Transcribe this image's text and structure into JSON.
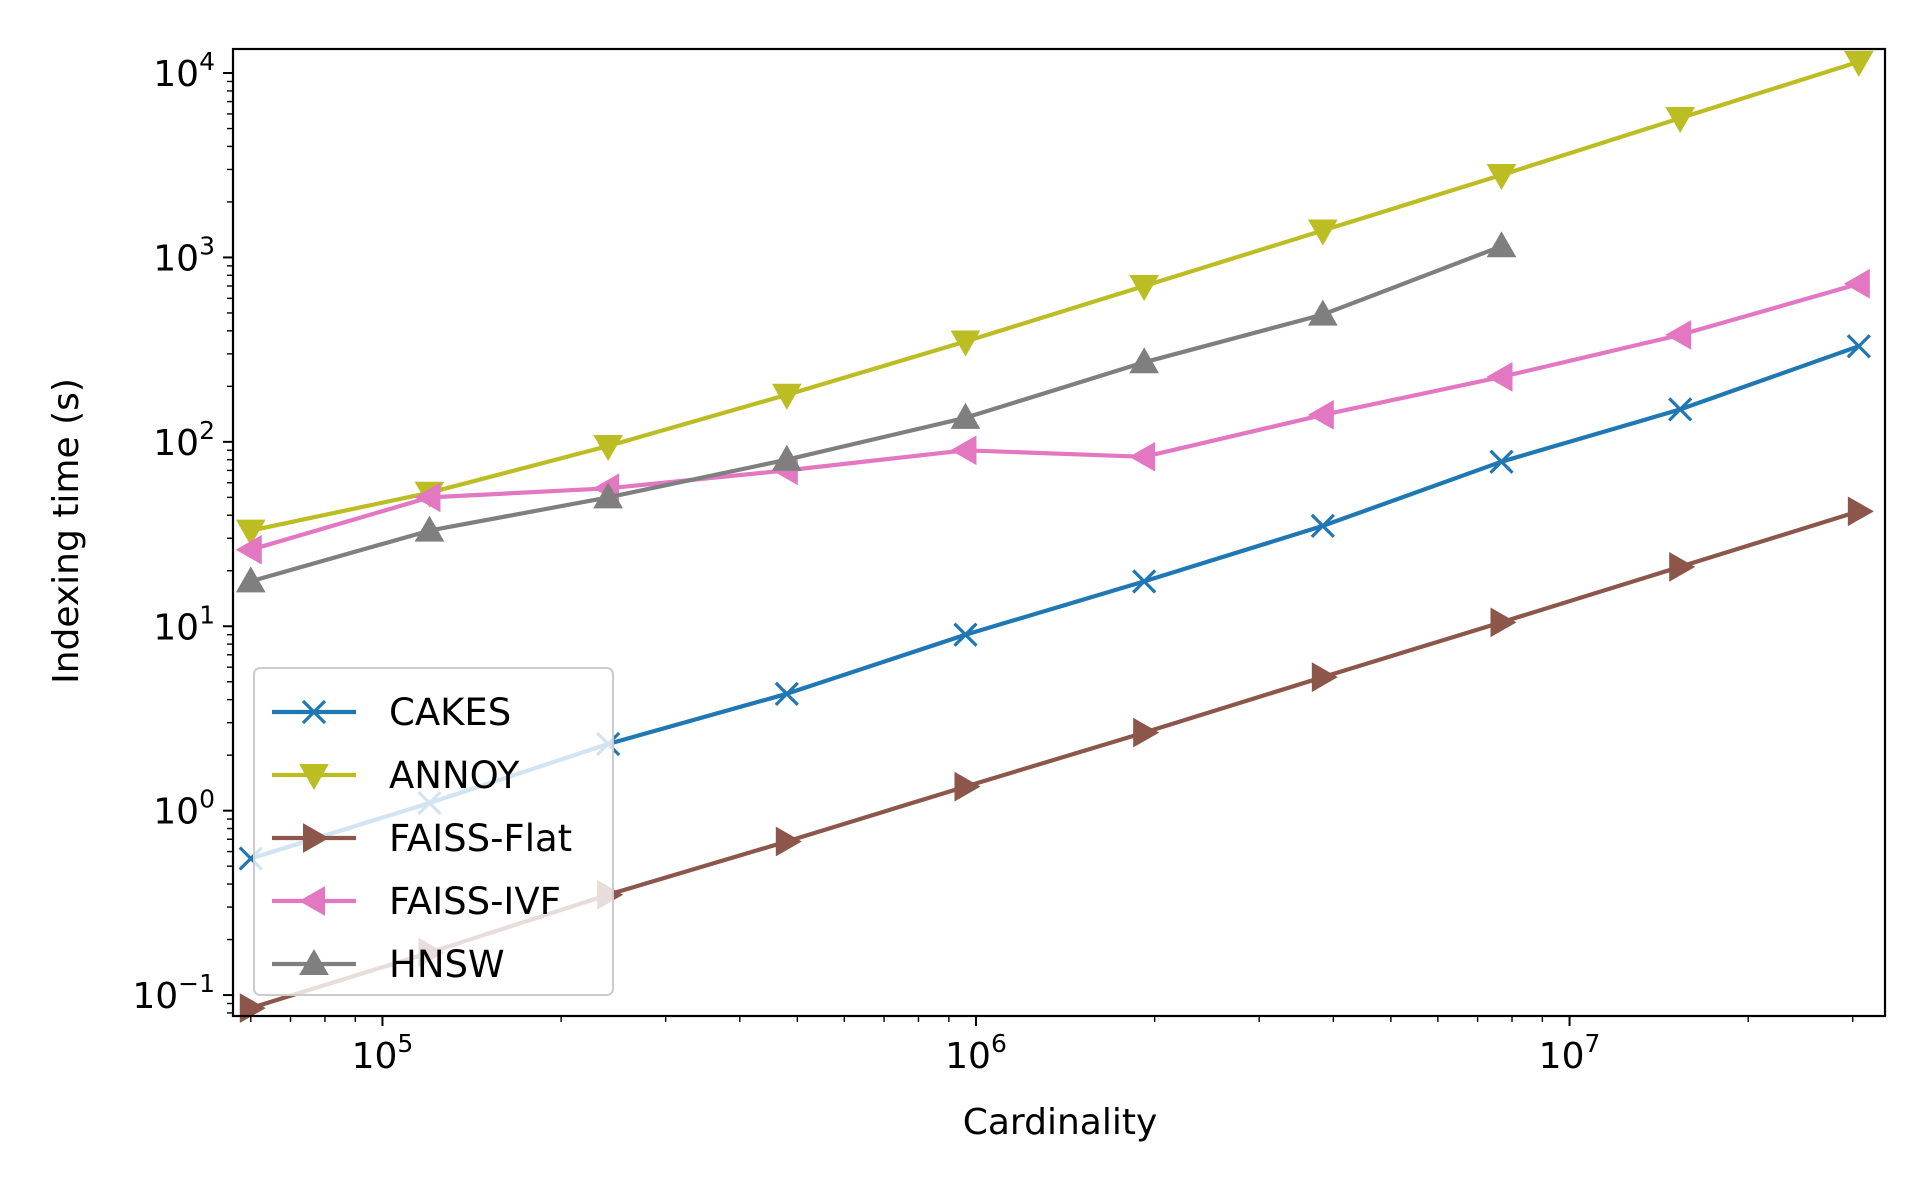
{
  "chart_data": {
    "type": "line",
    "title": "",
    "xlabel": "Cardinality",
    "ylabel": "Indexing time (s)",
    "xscale": "log",
    "yscale": "log",
    "xlim": [
      56000,
      34000000
    ],
    "ylim": [
      0.077,
      13500
    ],
    "x_major_ticks": [
      {
        "mantissa": "10",
        "exp": "5"
      },
      {
        "mantissa": "10",
        "exp": "6"
      },
      {
        "mantissa": "10",
        "exp": "7"
      }
    ],
    "y_major_ticks": [
      {
        "mantissa": "10",
        "exp": "−1"
      },
      {
        "mantissa": "10",
        "exp": "0"
      },
      {
        "mantissa": "10",
        "exp": "1"
      },
      {
        "mantissa": "10",
        "exp": "2"
      },
      {
        "mantissa": "10",
        "exp": "3"
      },
      {
        "mantissa": "10",
        "exp": "4"
      }
    ],
    "grid": false,
    "legend_position": "lower-left",
    "series": [
      {
        "name": "CAKES",
        "color": "#1f77b4",
        "marker": "x",
        "x": [
          60000,
          120000,
          240000,
          480000,
          960000,
          1920000,
          3840000,
          7680000,
          15360000,
          30720000
        ],
        "y": [
          0.55,
          1.1,
          2.3,
          4.3,
          9.0,
          17.5,
          35,
          78,
          150,
          330
        ]
      },
      {
        "name": "ANNOY",
        "color": "#bcbd22",
        "marker": "triangle-down",
        "x": [
          60000,
          120000,
          240000,
          480000,
          960000,
          1920000,
          3840000,
          7680000,
          15360000,
          30720000
        ],
        "y": [
          33,
          53,
          95,
          180,
          350,
          700,
          1400,
          2800,
          5700,
          11500
        ]
      },
      {
        "name": "FAISS-Flat",
        "color": "#8c564b",
        "marker": "triangle-right",
        "x": [
          60000,
          120000,
          240000,
          480000,
          960000,
          1920000,
          3840000,
          7680000,
          15360000,
          30720000
        ],
        "y": [
          0.085,
          0.17,
          0.35,
          0.68,
          1.35,
          2.65,
          5.3,
          10.5,
          21,
          42
        ]
      },
      {
        "name": "FAISS-IVF",
        "color": "#e377c2",
        "marker": "triangle-left",
        "x": [
          60000,
          120000,
          240000,
          480000,
          960000,
          1920000,
          3840000,
          7680000,
          15360000,
          30720000
        ],
        "y": [
          26,
          50,
          56,
          70,
          90,
          83,
          140,
          225,
          380,
          720
        ]
      },
      {
        "name": "HNSW",
        "color": "#7f7f7f",
        "marker": "triangle-up",
        "x": [
          60000,
          120000,
          240000,
          480000,
          960000,
          1920000,
          3840000,
          7680000
        ],
        "y": [
          17.5,
          33,
          50,
          80,
          135,
          270,
          490,
          1150
        ]
      }
    ]
  }
}
